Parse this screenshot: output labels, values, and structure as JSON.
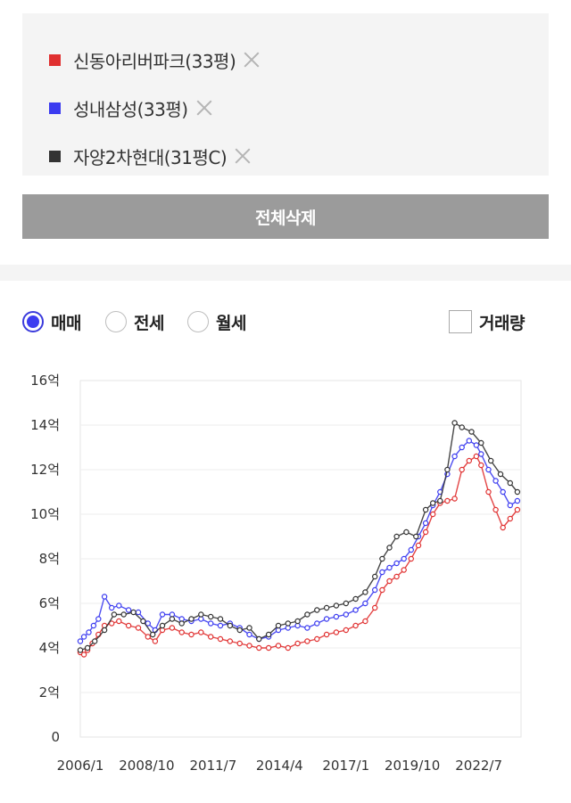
{
  "compare_list": {
    "items": [
      {
        "name": "신동아리버파크(33평)",
        "color": "#e03030"
      },
      {
        "name": "성내삼성(33평)",
        "color": "#3b3bf0"
      },
      {
        "name": "자양2차현대(31평C)",
        "color": "#333333"
      }
    ],
    "remove_icon": "close-icon",
    "delete_all_label": "전체삭제"
  },
  "trade_type": {
    "options": [
      {
        "label": "매매",
        "checked": true
      },
      {
        "label": "전세",
        "checked": false
      },
      {
        "label": "월세",
        "checked": false
      }
    ],
    "volume_label": "거래량",
    "volume_checked": false
  },
  "chart_data": {
    "type": "line",
    "y_ticks": [
      "16억",
      "14억",
      "12억",
      "10억",
      "8억",
      "6억",
      "4억",
      "2억",
      "0"
    ],
    "ylim": [
      0,
      16
    ],
    "y_unit": "억",
    "x_ticks": [
      "2006/1",
      "2008/10",
      "2011/7",
      "2014/4",
      "2017/1",
      "2019/10",
      "2022/7"
    ],
    "xlim": [
      2006.0,
      2024.25
    ],
    "grid": true,
    "series": [
      {
        "name": "신동아리버파크(33평)",
        "color": "#e03030",
        "points": [
          [
            2006.0,
            3.8
          ],
          [
            2006.15,
            3.7
          ],
          [
            2006.3,
            3.9
          ],
          [
            2006.5,
            4.2
          ],
          [
            2006.75,
            4.6
          ],
          [
            2007.0,
            5.0
          ],
          [
            2007.3,
            5.1
          ],
          [
            2007.6,
            5.2
          ],
          [
            2008.0,
            5.0
          ],
          [
            2008.4,
            4.9
          ],
          [
            2008.8,
            4.5
          ],
          [
            2009.1,
            4.3
          ],
          [
            2009.4,
            4.8
          ],
          [
            2009.8,
            4.9
          ],
          [
            2010.2,
            4.7
          ],
          [
            2010.6,
            4.6
          ],
          [
            2011.0,
            4.7
          ],
          [
            2011.4,
            4.5
          ],
          [
            2011.8,
            4.4
          ],
          [
            2012.2,
            4.3
          ],
          [
            2012.6,
            4.2
          ],
          [
            2013.0,
            4.1
          ],
          [
            2013.4,
            4.0
          ],
          [
            2013.8,
            4.0
          ],
          [
            2014.2,
            4.1
          ],
          [
            2014.6,
            4.0
          ],
          [
            2015.0,
            4.2
          ],
          [
            2015.4,
            4.3
          ],
          [
            2015.8,
            4.4
          ],
          [
            2016.2,
            4.6
          ],
          [
            2016.6,
            4.7
          ],
          [
            2017.0,
            4.8
          ],
          [
            2017.4,
            5.0
          ],
          [
            2017.8,
            5.2
          ],
          [
            2018.2,
            5.8
          ],
          [
            2018.5,
            6.6
          ],
          [
            2018.8,
            7.0
          ],
          [
            2019.1,
            7.2
          ],
          [
            2019.4,
            7.5
          ],
          [
            2019.7,
            8.0
          ],
          [
            2020.0,
            8.6
          ],
          [
            2020.3,
            9.2
          ],
          [
            2020.6,
            10.0
          ],
          [
            2020.9,
            10.5
          ],
          [
            2021.2,
            10.6
          ],
          [
            2021.5,
            10.7
          ],
          [
            2021.8,
            12.0
          ],
          [
            2022.1,
            12.4
          ],
          [
            2022.4,
            12.6
          ],
          [
            2022.6,
            12.2
          ],
          [
            2022.9,
            11.0
          ],
          [
            2023.2,
            10.2
          ],
          [
            2023.5,
            9.4
          ],
          [
            2023.8,
            9.8
          ],
          [
            2024.1,
            10.2
          ]
        ]
      },
      {
        "name": "성내삼성(33평)",
        "color": "#3b3bf0",
        "points": [
          [
            2006.0,
            4.3
          ],
          [
            2006.15,
            4.5
          ],
          [
            2006.35,
            4.7
          ],
          [
            2006.55,
            5.0
          ],
          [
            2006.75,
            5.3
          ],
          [
            2007.0,
            6.3
          ],
          [
            2007.3,
            5.8
          ],
          [
            2007.6,
            5.9
          ],
          [
            2008.0,
            5.7
          ],
          [
            2008.4,
            5.6
          ],
          [
            2008.8,
            5.1
          ],
          [
            2009.1,
            4.8
          ],
          [
            2009.4,
            5.5
          ],
          [
            2009.8,
            5.5
          ],
          [
            2010.2,
            5.3
          ],
          [
            2010.6,
            5.2
          ],
          [
            2011.0,
            5.3
          ],
          [
            2011.4,
            5.1
          ],
          [
            2011.8,
            5.0
          ],
          [
            2012.2,
            5.1
          ],
          [
            2012.6,
            4.9
          ],
          [
            2013.0,
            4.6
          ],
          [
            2013.4,
            4.4
          ],
          [
            2013.8,
            4.5
          ],
          [
            2014.2,
            4.8
          ],
          [
            2014.6,
            4.9
          ],
          [
            2015.0,
            5.0
          ],
          [
            2015.4,
            4.9
          ],
          [
            2015.8,
            5.1
          ],
          [
            2016.2,
            5.3
          ],
          [
            2016.6,
            5.4
          ],
          [
            2017.0,
            5.5
          ],
          [
            2017.4,
            5.7
          ],
          [
            2017.8,
            6.0
          ],
          [
            2018.2,
            6.6
          ],
          [
            2018.5,
            7.4
          ],
          [
            2018.8,
            7.6
          ],
          [
            2019.1,
            7.8
          ],
          [
            2019.4,
            8.0
          ],
          [
            2019.7,
            8.4
          ],
          [
            2020.0,
            9.0
          ],
          [
            2020.3,
            9.6
          ],
          [
            2020.6,
            10.4
          ],
          [
            2020.9,
            11.0
          ],
          [
            2021.2,
            11.8
          ],
          [
            2021.5,
            12.6
          ],
          [
            2021.8,
            13.0
          ],
          [
            2022.1,
            13.3
          ],
          [
            2022.4,
            13.1
          ],
          [
            2022.6,
            12.7
          ],
          [
            2022.9,
            12.0
          ],
          [
            2023.2,
            11.5
          ],
          [
            2023.5,
            11.0
          ],
          [
            2023.8,
            10.4
          ],
          [
            2024.1,
            10.6
          ]
        ]
      },
      {
        "name": "자양2차현대(31평C)",
        "color": "#333333",
        "points": [
          [
            2006.0,
            3.9
          ],
          [
            2006.3,
            4.0
          ],
          [
            2006.6,
            4.3
          ],
          [
            2007.0,
            4.8
          ],
          [
            2007.4,
            5.5
          ],
          [
            2007.8,
            5.5
          ],
          [
            2008.2,
            5.6
          ],
          [
            2008.6,
            5.2
          ],
          [
            2009.0,
            4.6
          ],
          [
            2009.4,
            5.0
          ],
          [
            2009.8,
            5.3
          ],
          [
            2010.2,
            5.1
          ],
          [
            2010.6,
            5.3
          ],
          [
            2011.0,
            5.5
          ],
          [
            2011.4,
            5.4
          ],
          [
            2011.8,
            5.3
          ],
          [
            2012.2,
            5.0
          ],
          [
            2012.6,
            4.8
          ],
          [
            2013.0,
            4.9
          ],
          [
            2013.4,
            4.4
          ],
          [
            2013.8,
            4.6
          ],
          [
            2014.2,
            5.0
          ],
          [
            2014.6,
            5.1
          ],
          [
            2015.0,
            5.2
          ],
          [
            2015.4,
            5.5
          ],
          [
            2015.8,
            5.7
          ],
          [
            2016.2,
            5.8
          ],
          [
            2016.6,
            5.9
          ],
          [
            2017.0,
            6.0
          ],
          [
            2017.4,
            6.2
          ],
          [
            2017.8,
            6.5
          ],
          [
            2018.2,
            7.2
          ],
          [
            2018.5,
            8.0
          ],
          [
            2018.8,
            8.5
          ],
          [
            2019.1,
            9.0
          ],
          [
            2019.5,
            9.2
          ],
          [
            2019.9,
            9.0
          ],
          [
            2020.3,
            10.2
          ],
          [
            2020.6,
            10.5
          ],
          [
            2020.9,
            10.6
          ],
          [
            2021.2,
            12.0
          ],
          [
            2021.5,
            14.1
          ],
          [
            2021.8,
            13.9
          ],
          [
            2022.2,
            13.7
          ],
          [
            2022.6,
            13.2
          ],
          [
            2023.0,
            12.4
          ],
          [
            2023.4,
            11.8
          ],
          [
            2023.8,
            11.4
          ],
          [
            2024.1,
            11.0
          ]
        ]
      }
    ]
  }
}
